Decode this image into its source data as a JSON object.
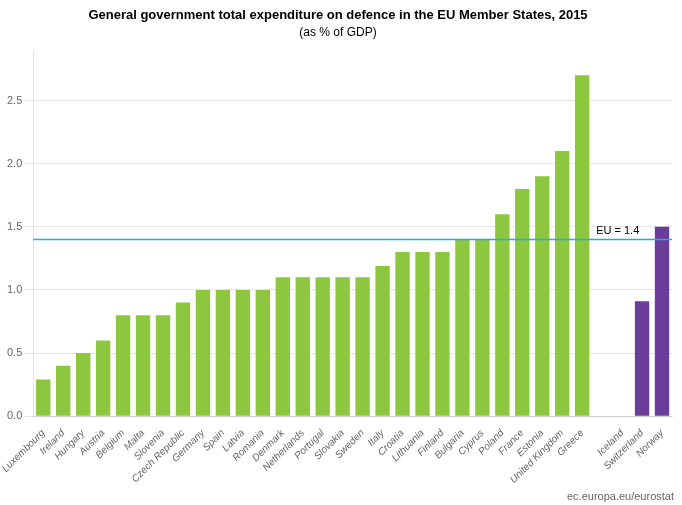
{
  "chart_data": {
    "type": "bar",
    "title": "General government total expenditure on defence in the EU Member States, 2015",
    "subtitle": "(as % of GDP)",
    "categories": [
      "Luxembourg",
      "Ireland",
      "Hungary",
      "Austria",
      "Belgium",
      "Malta",
      "Slovenia",
      "Czech Republic",
      "Germany",
      "Spain",
      "Latvia",
      "Romania",
      "Denmark",
      "Netherlands",
      "Portugal",
      "Slovakia",
      "Sweden",
      "Italy",
      "Croatia",
      "Lithuania",
      "Finland",
      "Bulgaria",
      "Cyprus",
      "Poland",
      "France",
      "Estonia",
      "United Kingdom",
      "Greece",
      null,
      "Iceland",
      "Switzerland",
      "Norway"
    ],
    "values": [
      0.29,
      0.4,
      0.5,
      0.6,
      0.8,
      0.8,
      0.8,
      0.9,
      1.0,
      1.0,
      1.0,
      1.0,
      1.1,
      1.1,
      1.1,
      1.1,
      1.1,
      1.19,
      1.3,
      1.3,
      1.3,
      1.4,
      1.4,
      1.6,
      1.8,
      1.9,
      2.1,
      2.7,
      null,
      null,
      0.91,
      1.5
    ],
    "colors": [
      "#8dc63f",
      "#8dc63f",
      "#8dc63f",
      "#8dc63f",
      "#8dc63f",
      "#8dc63f",
      "#8dc63f",
      "#8dc63f",
      "#8dc63f",
      "#8dc63f",
      "#8dc63f",
      "#8dc63f",
      "#8dc63f",
      "#8dc63f",
      "#8dc63f",
      "#8dc63f",
      "#8dc63f",
      "#8dc63f",
      "#8dc63f",
      "#8dc63f",
      "#8dc63f",
      "#8dc63f",
      "#8dc63f",
      "#8dc63f",
      "#8dc63f",
      "#8dc63f",
      "#8dc63f",
      "#8dc63f",
      "#ffffff",
      "#ffffff",
      "#6a3d9a",
      "#6a3d9a"
    ],
    "ylim": [
      0.0,
      2.9
    ],
    "yticks": [
      {
        "value": 0.0,
        "label": "0.0"
      },
      0.5,
      {
        "value": 1.0,
        "label": "1.0"
      },
      1.5,
      {
        "value": 2.0,
        "label": "2.0"
      },
      2.5
    ],
    "grid": true,
    "annotations": [
      {
        "type": "hline",
        "y": 1.4,
        "label": "EU = 1.4",
        "color": "#29abe2"
      }
    ],
    "source": "ec.europa.eu/eurostat"
  }
}
